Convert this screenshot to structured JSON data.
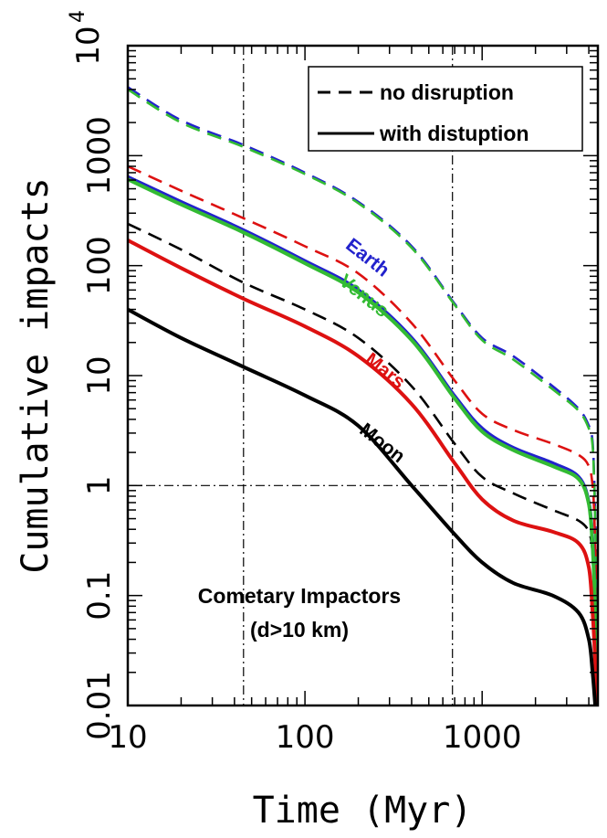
{
  "chart_data": {
    "type": "line",
    "title": "",
    "xlabel": "Time (Myr)",
    "ylabel": "Cumulative impacts",
    "xscale": "log",
    "yscale": "log",
    "xlim": [
      10,
      4500
    ],
    "ylim": [
      0.01,
      10000
    ],
    "x_ticks": [
      {
        "value": 10,
        "label": "10"
      },
      {
        "value": 100,
        "label": "100"
      },
      {
        "value": 1000,
        "label": "1000"
      }
    ],
    "y_ticks": [
      {
        "value": 0.01,
        "label": "0.01"
      },
      {
        "value": 0.1,
        "label": "0.1"
      },
      {
        "value": 1,
        "label": "1"
      },
      {
        "value": 10,
        "label": "10"
      },
      {
        "value": 100,
        "label": "100"
      },
      {
        "value": 1000,
        "label": "1000"
      },
      {
        "value": 10000,
        "base": "10",
        "exp": "4"
      }
    ],
    "reference_lines": {
      "vertical_x": [
        45,
        680
      ],
      "horizontal_y": [
        1
      ]
    },
    "legend": {
      "position": "top-right",
      "entries": [
        {
          "label": "no disruption",
          "style": "dashed"
        },
        {
          "label": "with distuption",
          "style": "solid"
        }
      ]
    },
    "annotation": [
      "Cometary Impactors",
      "(d>10 km)"
    ],
    "series": [
      {
        "name": "Earth",
        "color": "#2222cc",
        "style": "dashed",
        "points": [
          [
            10,
            4200
          ],
          [
            20,
            2100
          ],
          [
            45,
            1250
          ],
          [
            100,
            700
          ],
          [
            200,
            380
          ],
          [
            400,
            150
          ],
          [
            700,
            45
          ],
          [
            1000,
            22
          ],
          [
            1500,
            15
          ],
          [
            2500,
            8
          ],
          [
            3500,
            5
          ],
          [
            4000,
            3.5
          ],
          [
            4200,
            2.5
          ],
          [
            4300,
            1
          ],
          [
            4400,
            0.2
          ],
          [
            4450,
            0.04
          ]
        ]
      },
      {
        "name": "Venus",
        "color": "#33bb33",
        "style": "dashed",
        "points": [
          [
            10,
            4000
          ],
          [
            20,
            2000
          ],
          [
            45,
            1200
          ],
          [
            100,
            680
          ],
          [
            200,
            370
          ],
          [
            400,
            145
          ],
          [
            700,
            44
          ],
          [
            1000,
            21
          ],
          [
            1500,
            14
          ],
          [
            2500,
            7.5
          ],
          [
            3500,
            4.8
          ],
          [
            4000,
            3.3
          ],
          [
            4200,
            2.3
          ],
          [
            4300,
            0.9
          ],
          [
            4400,
            0.18
          ],
          [
            4450,
            0.035
          ]
        ]
      },
      {
        "name": "Mars",
        "color": "#dd1111",
        "style": "dashed",
        "points": [
          [
            10,
            800
          ],
          [
            20,
            480
          ],
          [
            45,
            270
          ],
          [
            100,
            150
          ],
          [
            200,
            85
          ],
          [
            400,
            30
          ],
          [
            700,
            9
          ],
          [
            1000,
            4.5
          ],
          [
            1500,
            3.2
          ],
          [
            2500,
            2.4
          ],
          [
            3500,
            1.9
          ],
          [
            4000,
            1.5
          ],
          [
            4200,
            1
          ],
          [
            4300,
            0.5
          ],
          [
            4400,
            0.12
          ],
          [
            4450,
            0.03
          ]
        ]
      },
      {
        "name": "Moon",
        "color": "#000000",
        "style": "dashed",
        "points": [
          [
            10,
            240
          ],
          [
            20,
            140
          ],
          [
            45,
            70
          ],
          [
            100,
            40
          ],
          [
            200,
            22
          ],
          [
            400,
            8
          ],
          [
            700,
            2.4
          ],
          [
            1000,
            1.2
          ],
          [
            1500,
            0.85
          ],
          [
            2500,
            0.6
          ],
          [
            3500,
            0.48
          ],
          [
            4000,
            0.38
          ],
          [
            4200,
            0.25
          ],
          [
            4300,
            0.13
          ],
          [
            4400,
            0.035
          ],
          [
            4450,
            0.012
          ]
        ]
      },
      {
        "name": "Earth",
        "color": "#2222cc",
        "style": "solid",
        "points": [
          [
            10,
            640
          ],
          [
            20,
            380
          ],
          [
            45,
            210
          ],
          [
            100,
            110
          ],
          [
            200,
            60
          ],
          [
            400,
            22
          ],
          [
            700,
            6.5
          ],
          [
            1000,
            3.3
          ],
          [
            1500,
            2.2
          ],
          [
            2500,
            1.6
          ],
          [
            3500,
            1.2
          ],
          [
            4000,
            0.7
          ],
          [
            4200,
            0.3
          ],
          [
            4350,
            0.08
          ],
          [
            4450,
            0.02
          ]
        ]
      },
      {
        "name": "Venus",
        "color": "#33bb33",
        "style": "solid",
        "points": [
          [
            10,
            610
          ],
          [
            20,
            360
          ],
          [
            45,
            200
          ],
          [
            100,
            105
          ],
          [
            200,
            57
          ],
          [
            400,
            21
          ],
          [
            700,
            6.2
          ],
          [
            1000,
            3.1
          ],
          [
            1500,
            2.1
          ],
          [
            2500,
            1.5
          ],
          [
            3500,
            1.15
          ],
          [
            4000,
            0.68
          ],
          [
            4200,
            0.28
          ],
          [
            4350,
            0.075
          ],
          [
            4450,
            0.02
          ]
        ]
      },
      {
        "name": "Mars",
        "color": "#dd1111",
        "style": "solid",
        "points": [
          [
            10,
            170
          ],
          [
            20,
            95
          ],
          [
            45,
            50
          ],
          [
            100,
            28
          ],
          [
            200,
            15
          ],
          [
            400,
            5.5
          ],
          [
            700,
            1.6
          ],
          [
            1000,
            0.75
          ],
          [
            1500,
            0.48
          ],
          [
            2500,
            0.38
          ],
          [
            3500,
            0.3
          ],
          [
            4000,
            0.18
          ],
          [
            4200,
            0.07
          ],
          [
            4350,
            0.025
          ],
          [
            4450,
            0.01
          ]
        ]
      },
      {
        "name": "Moon",
        "color": "#000000",
        "style": "solid",
        "points": [
          [
            10,
            40
          ],
          [
            20,
            22
          ],
          [
            45,
            12
          ],
          [
            100,
            6.6
          ],
          [
            200,
            3.5
          ],
          [
            400,
            1
          ],
          [
            700,
            0.36
          ],
          [
            1000,
            0.2
          ],
          [
            1500,
            0.13
          ],
          [
            2500,
            0.1
          ],
          [
            3500,
            0.07
          ],
          [
            4000,
            0.04
          ],
          [
            4200,
            0.02
          ],
          [
            4350,
            0.01
          ]
        ]
      }
    ],
    "curve_labels": [
      {
        "text": "Earth",
        "color": "#2222cc",
        "x": 215,
        "y": 107,
        "angle": 38
      },
      {
        "text": "Venus",
        "color": "#33bb33",
        "x": 205,
        "y": 48,
        "angle": 38
      },
      {
        "text": "Mars",
        "color": "#dd1111",
        "x": 270,
        "y": 10,
        "angle": 38
      },
      {
        "text": "Moon",
        "color": "#000000",
        "x": 260,
        "y": 2.2,
        "angle": 38
      }
    ]
  }
}
